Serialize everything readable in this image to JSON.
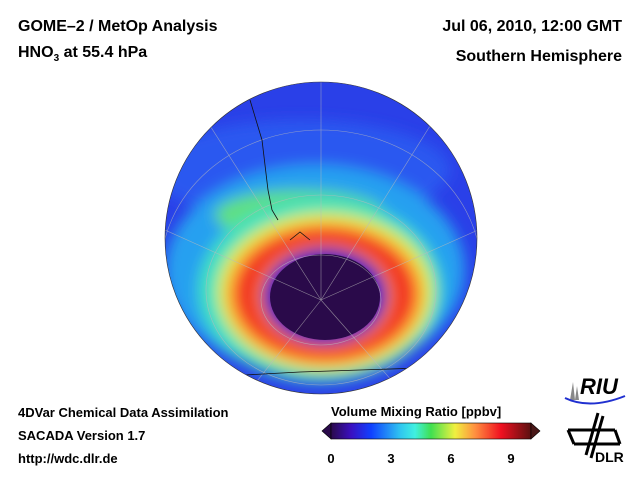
{
  "header": {
    "title_line1": "GOME–2 / MetOp Analysis",
    "title_line2_prefix": "HNO",
    "title_line2_sub": "3",
    "title_line2_suffix": " at 55.4 hPa",
    "date": "Jul 06, 2010, 12:00 GMT",
    "region": "Southern Hemisphere"
  },
  "footer": {
    "line1": "4DVar Chemical Data Assimilation",
    "line2": "SACADA Version 1.7",
    "line3": "http://wdc.dlr.de"
  },
  "colorbar": {
    "title": "Volume Mixing Ratio [ppbv]",
    "ticks": [
      "0",
      "3",
      "6",
      "9"
    ],
    "min": 0,
    "max": 10
  },
  "logos": {
    "riu": "RIU",
    "dlr": "DLR"
  }
}
